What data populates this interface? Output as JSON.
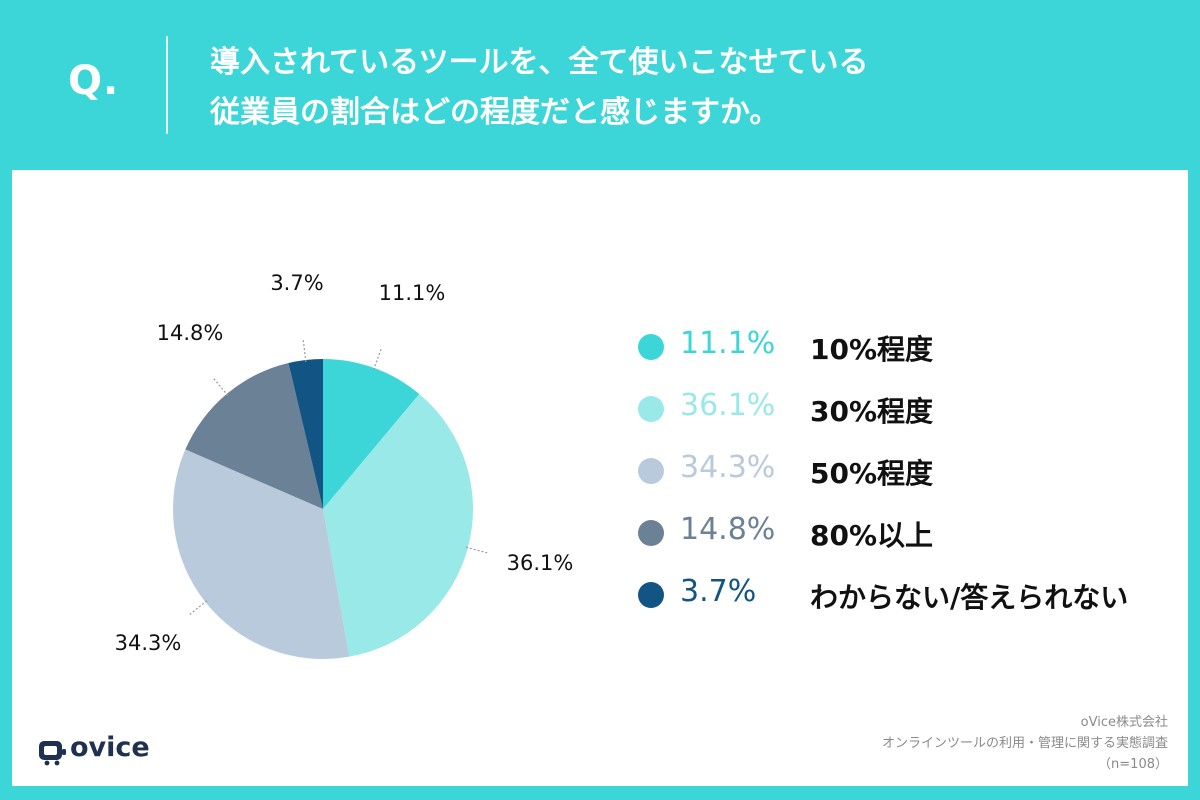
{
  "header": {
    "q_mark": "Q.",
    "question_line1": "導入されているツールを、全て使いこなせている",
    "question_line2": "従業員の割合はどの程度だと感じますか。"
  },
  "chart_data": {
    "type": "pie",
    "title": "導入されているツールを、全て使いこなせている従業員の割合はどの程度だと感じますか。",
    "start_angle_deg": 0,
    "direction": "clockwise",
    "slices": [
      {
        "label": "10%程度",
        "value": 11.1,
        "value_label": "11.1%",
        "color": "#3dd6d8"
      },
      {
        "label": "30%程度",
        "value": 36.1,
        "value_label": "36.1%",
        "color": "#98e9e7"
      },
      {
        "label": "50%程度",
        "value": 34.3,
        "value_label": "34.3%",
        "color": "#b8cadc"
      },
      {
        "label": "80%以上",
        "value": 14.8,
        "value_label": "14.8%",
        "color": "#6b8196"
      },
      {
        "label": "わからない/答えられない",
        "value": 3.7,
        "value_label": "3.7%",
        "color": "#125584"
      }
    ],
    "legend": [
      {
        "pct": "11.1%",
        "label": "10%程度",
        "color": "#3dd6d8"
      },
      {
        "pct": "36.1%",
        "label": "30%程度",
        "color": "#98e9e7"
      },
      {
        "pct": "34.3%",
        "label": "50%程度",
        "color": "#b8cadc"
      },
      {
        "pct": "14.8%",
        "label": "80%以上",
        "color": "#6b8196"
      },
      {
        "pct": "3.7%",
        "label": "わからない/答えられない",
        "color": "#125584"
      }
    ]
  },
  "logo": {
    "text": "ovice",
    "icon": "ovice-logo-icon",
    "color": "#1f3050"
  },
  "source": {
    "company": "oVice株式会社",
    "survey": "オンラインツールの利用・管理に関する実態調査",
    "sample": "（n=108）"
  }
}
